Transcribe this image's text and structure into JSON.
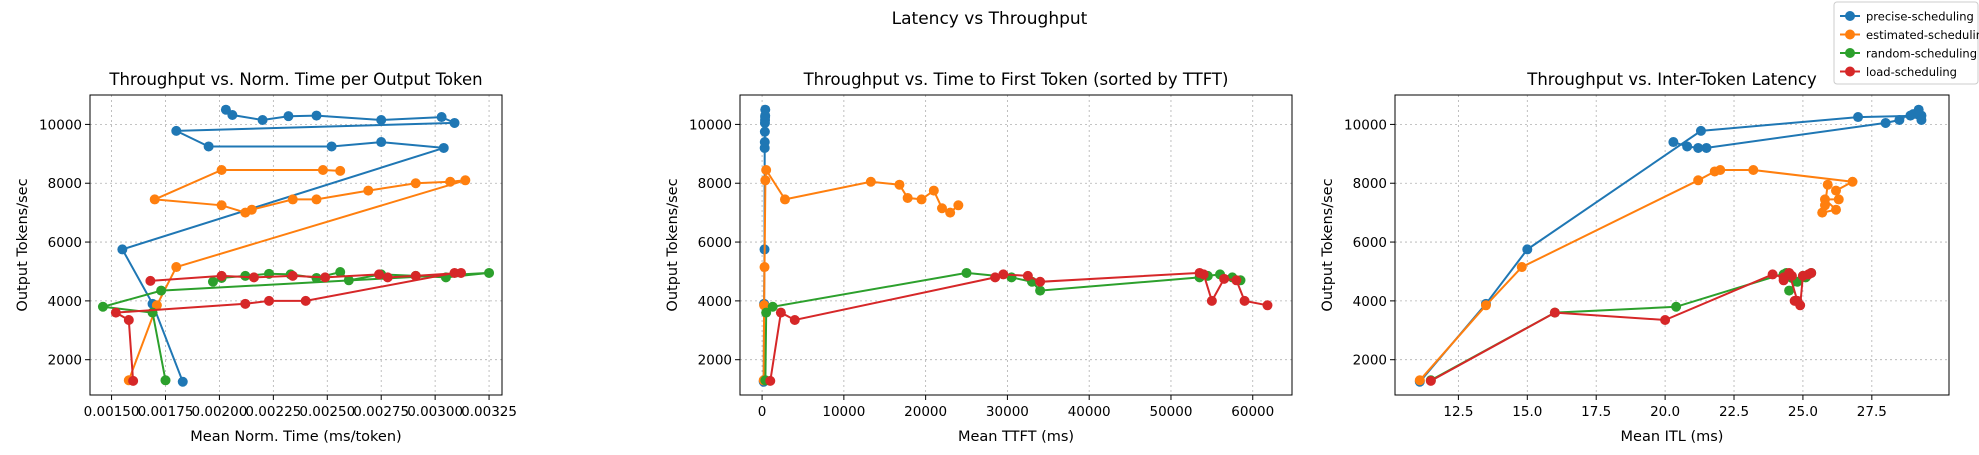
{
  "figure": {
    "suptitle": "Latency vs Throughput"
  },
  "legend": {
    "placement": "top-right",
    "entries": [
      {
        "name": "precise-scheduling",
        "color": "#1f77b4"
      },
      {
        "name": "estimated-scheduling",
        "color": "#ff7f0e"
      },
      {
        "name": "random-scheduling",
        "color": "#2ca02c"
      },
      {
        "name": "load-scheduling",
        "color": "#d62728"
      }
    ]
  },
  "chart_data": [
    {
      "type": "line",
      "title": "Throughput vs. Norm. Time per Output Token",
      "xlabel": "Mean Norm. Time (ms/token)",
      "ylabel": "Output Tokens/sec",
      "xlim": [
        0.0014,
        0.00331
      ],
      "ylim": [
        800,
        11000
      ],
      "xticks": [
        0.0015,
        0.00175,
        0.002,
        0.00225,
        0.0025,
        0.00275,
        0.003,
        0.00325
      ],
      "xtick_labels": [
        "0.00150",
        "0.00175",
        "0.00200",
        "0.00225",
        "0.00250",
        "0.00275",
        "0.00300",
        "0.00325"
      ],
      "yticks": [
        2000,
        4000,
        6000,
        8000,
        10000
      ],
      "ytick_labels": [
        "2000",
        "4000",
        "6000",
        "8000",
        "10000"
      ],
      "grid": true,
      "series": [
        {
          "name": "precise-scheduling",
          "color": "#1f77b4",
          "points": [
            [
              0.00183,
              1250
            ],
            [
              0.00169,
              3900
            ],
            [
              0.00155,
              5750
            ],
            [
              0.00304,
              9200
            ],
            [
              0.00275,
              9400
            ],
            [
              0.00252,
              9250
            ],
            [
              0.00195,
              9250
            ],
            [
              0.0018,
              9780
            ],
            [
              0.00309,
              10050
            ],
            [
              0.00303,
              10250
            ],
            [
              0.00275,
              10150
            ],
            [
              0.00245,
              10300
            ],
            [
              0.00232,
              10280
            ],
            [
              0.0022,
              10150
            ],
            [
              0.00206,
              10320
            ],
            [
              0.00203,
              10500
            ]
          ]
        },
        {
          "name": "estimated-scheduling",
          "color": "#ff7f0e",
          "points": [
            [
              0.00158,
              1300
            ],
            [
              0.00171,
              3850
            ],
            [
              0.0018,
              5150
            ],
            [
              0.00314,
              8100
            ],
            [
              0.00307,
              8050
            ],
            [
              0.00291,
              8000
            ],
            [
              0.00269,
              7750
            ],
            [
              0.00245,
              7450
            ],
            [
              0.00234,
              7450
            ],
            [
              0.00215,
              7100
            ],
            [
              0.00212,
              7000
            ],
            [
              0.00201,
              7250
            ],
            [
              0.0017,
              7450
            ],
            [
              0.00201,
              8450
            ],
            [
              0.00248,
              8450
            ],
            [
              0.00256,
              8420
            ]
          ]
        },
        {
          "name": "random-scheduling",
          "color": "#2ca02c",
          "points": [
            [
              0.00175,
              1300
            ],
            [
              0.00169,
              3600
            ],
            [
              0.00146,
              3800
            ],
            [
              0.00173,
              4350
            ],
            [
              0.00325,
              4950
            ],
            [
              0.00305,
              4800
            ],
            [
              0.00291,
              4850
            ],
            [
              0.00275,
              4900
            ],
            [
              0.0026,
              4700
            ],
            [
              0.00256,
              4980
            ],
            [
              0.00245,
              4780
            ],
            [
              0.00233,
              4900
            ],
            [
              0.00223,
              4920
            ],
            [
              0.00212,
              4850
            ],
            [
              0.00201,
              4780
            ],
            [
              0.00197,
              4650
            ]
          ]
        },
        {
          "name": "load-scheduling",
          "color": "#d62728",
          "points": [
            [
              0.0016,
              1280
            ],
            [
              0.00158,
              3350
            ],
            [
              0.00152,
              3600
            ],
            [
              0.00212,
              3900
            ],
            [
              0.00223,
              4000
            ],
            [
              0.0024,
              4000
            ],
            [
              0.00309,
              4950
            ],
            [
              0.00312,
              4950
            ],
            [
              0.00291,
              4850
            ],
            [
              0.00278,
              4800
            ],
            [
              0.00274,
              4900
            ],
            [
              0.00249,
              4800
            ],
            [
              0.00234,
              4850
            ],
            [
              0.00216,
              4800
            ],
            [
              0.00201,
              4850
            ],
            [
              0.00168,
              4680
            ]
          ]
        }
      ]
    },
    {
      "type": "line",
      "title": "Throughput vs. Time to First Token (sorted by TTFT)",
      "xlabel": "Mean TTFT (ms)",
      "ylabel": "Output Tokens/sec",
      "xlim": [
        -2700,
        64800
      ],
      "ylim": [
        800,
        11000
      ],
      "xticks": [
        0,
        10000,
        20000,
        30000,
        40000,
        50000,
        60000
      ],
      "xtick_labels": [
        "0",
        "10000",
        "20000",
        "30000",
        "40000",
        "50000",
        "60000"
      ],
      "yticks": [
        2000,
        4000,
        6000,
        8000,
        10000
      ],
      "ytick_labels": [
        "2000",
        "4000",
        "6000",
        "8000",
        "10000"
      ],
      "grid": true,
      "series": [
        {
          "name": "precise-scheduling",
          "color": "#1f77b4",
          "points": [
            [
              200,
              1250
            ],
            [
              250,
              3900
            ],
            [
              300,
              5750
            ],
            [
              320,
              9200
            ],
            [
              330,
              9400
            ],
            [
              340,
              9750
            ],
            [
              350,
              10050
            ],
            [
              360,
              10150
            ],
            [
              370,
              10250
            ],
            [
              380,
              10300
            ],
            [
              390,
              10500
            ]
          ]
        },
        {
          "name": "estimated-scheduling",
          "color": "#ff7f0e",
          "points": [
            [
              200,
              1300
            ],
            [
              250,
              3850
            ],
            [
              300,
              5150
            ],
            [
              400,
              8100
            ],
            [
              500,
              8450
            ],
            [
              2800,
              7450
            ],
            [
              13300,
              8050
            ],
            [
              16800,
              7950
            ],
            [
              17800,
              7500
            ],
            [
              19500,
              7450
            ],
            [
              21000,
              7750
            ],
            [
              22000,
              7150
            ],
            [
              23000,
              7000
            ],
            [
              24000,
              7250
            ]
          ]
        },
        {
          "name": "random-scheduling",
          "color": "#2ca02c",
          "points": [
            [
              400,
              1300
            ],
            [
              500,
              3600
            ],
            [
              1300,
              3800
            ],
            [
              25000,
              4950
            ],
            [
              30500,
              4800
            ],
            [
              33000,
              4650
            ],
            [
              34000,
              4350
            ],
            [
              53500,
              4800
            ],
            [
              54500,
              4850
            ],
            [
              56000,
              4900
            ],
            [
              57500,
              4800
            ],
            [
              58500,
              4700
            ]
          ]
        },
        {
          "name": "load-scheduling",
          "color": "#d62728",
          "points": [
            [
              1000,
              1280
            ],
            [
              2300,
              3600
            ],
            [
              4000,
              3350
            ],
            [
              28500,
              4800
            ],
            [
              29500,
              4900
            ],
            [
              32500,
              4850
            ],
            [
              34000,
              4650
            ],
            [
              53500,
              4950
            ],
            [
              54000,
              4900
            ],
            [
              55000,
              4000
            ],
            [
              56500,
              4750
            ],
            [
              58000,
              4700
            ],
            [
              59000,
              4000
            ],
            [
              61800,
              3850
            ]
          ]
        }
      ]
    },
    {
      "type": "line",
      "title": "Throughput vs. Inter-Token Latency",
      "xlabel": "Mean ITL (ms)",
      "ylabel": "Output Tokens/sec",
      "xlim": [
        10.2,
        30.3
      ],
      "ylim": [
        800,
        11000
      ],
      "xticks": [
        12.5,
        15.0,
        17.5,
        20.0,
        22.5,
        25.0,
        27.5
      ],
      "xtick_labels": [
        "12.5",
        "15.0",
        "17.5",
        "20.0",
        "22.5",
        "25.0",
        "27.5"
      ],
      "yticks": [
        2000,
        4000,
        6000,
        8000,
        10000
      ],
      "ytick_labels": [
        "2000",
        "4000",
        "6000",
        "8000",
        "10000"
      ],
      "grid": true,
      "series": [
        {
          "name": "precise-scheduling",
          "color": "#1f77b4",
          "points": [
            [
              11.1,
              1250
            ],
            [
              13.5,
              3900
            ],
            [
              15.0,
              5750
            ],
            [
              21.3,
              9780
            ],
            [
              27.0,
              10250
            ],
            [
              29.3,
              10300
            ],
            [
              29.3,
              10150
            ],
            [
              28.9,
              10300
            ],
            [
              29.0,
              10350
            ],
            [
              29.2,
              10500
            ],
            [
              28.5,
              10150
            ],
            [
              28.0,
              10050
            ],
            [
              21.5,
              9200
            ],
            [
              21.2,
              9200
            ],
            [
              20.8,
              9250
            ],
            [
              20.3,
              9400
            ]
          ]
        },
        {
          "name": "estimated-scheduling",
          "color": "#ff7f0e",
          "points": [
            [
              11.1,
              1300
            ],
            [
              13.5,
              3850
            ],
            [
              14.8,
              5150
            ],
            [
              21.2,
              8100
            ],
            [
              21.8,
              8400
            ],
            [
              22.0,
              8450
            ],
            [
              23.2,
              8450
            ],
            [
              26.8,
              8050
            ],
            [
              26.2,
              7750
            ],
            [
              26.3,
              7450
            ],
            [
              25.8,
              7450
            ],
            [
              26.2,
              7100
            ],
            [
              25.7,
              7000
            ],
            [
              25.8,
              7250
            ],
            [
              25.9,
              7950
            ]
          ]
        },
        {
          "name": "random-scheduling",
          "color": "#2ca02c",
          "points": [
            [
              11.5,
              1300
            ],
            [
              16.0,
              3600
            ],
            [
              20.4,
              3800
            ],
            [
              24.4,
              4950
            ],
            [
              24.6,
              4780
            ],
            [
              24.3,
              4900
            ],
            [
              24.8,
              4650
            ],
            [
              24.5,
              4350
            ],
            [
              25.0,
              4850
            ],
            [
              25.1,
              4800
            ],
            [
              25.3,
              4950
            ]
          ]
        },
        {
          "name": "load-scheduling",
          "color": "#d62728",
          "points": [
            [
              11.5,
              1280
            ],
            [
              16.0,
              3600
            ],
            [
              20.0,
              3350
            ],
            [
              23.9,
              4900
            ],
            [
              24.3,
              4800
            ],
            [
              24.6,
              4850
            ],
            [
              24.3,
              4700
            ],
            [
              24.5,
              4950
            ],
            [
              24.8,
              4000
            ],
            [
              24.7,
              4000
            ],
            [
              24.9,
              3850
            ],
            [
              25.0,
              4850
            ],
            [
              25.2,
              4900
            ],
            [
              25.3,
              4950
            ]
          ]
        }
      ]
    }
  ]
}
